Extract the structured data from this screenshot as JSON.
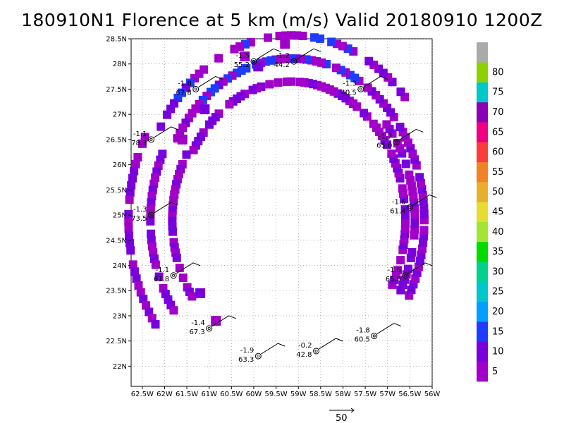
{
  "chart_data": {
    "type": "heatmap",
    "title": "180910N1 Florence at 5 km (m/s) Valid 20180910 1200Z",
    "x_ticks": [
      "62.5W",
      "62W",
      "61.5W",
      "61W",
      "60.5W",
      "60W",
      "59.5W",
      "59W",
      "58.5W",
      "58W",
      "57.5W",
      "57W",
      "56.5W",
      "56W"
    ],
    "y_ticks": [
      "28.5N",
      "28N",
      "27.5N",
      "27N",
      "26.5N",
      "26N",
      "25.5N",
      "25N",
      "24.5N",
      "24N",
      "23.5N",
      "23N",
      "22.5N",
      "22N"
    ],
    "xlim": [
      -62.75,
      -56.0
    ],
    "ylim": [
      21.6,
      28.5
    ],
    "grid": true,
    "colorbar": {
      "labels": [
        "5",
        "10",
        "15",
        "20",
        "25",
        "30",
        "35",
        "40",
        "45",
        "50",
        "55",
        "60",
        "65",
        "70",
        "75",
        "80"
      ],
      "colors": [
        "#a000c8",
        "#7800dc",
        "#1e3cff",
        "#00a0ff",
        "#00c8c8",
        "#00d28c",
        "#00dc00",
        "#a0e632",
        "#e6dc32",
        "#e6af2d",
        "#f08228",
        "#fa3c3c",
        "#f00082",
        "#8c00b4",
        "#00c8c8",
        "#8cd200",
        "#aaaaaa"
      ]
    },
    "arrow_scale_label": "50",
    "stations": [
      {
        "lon": -60.0,
        "lat": 28.05,
        "top": "-1.5",
        "bottom": "55.2"
      },
      {
        "lon": -59.1,
        "lat": 28.05,
        "top": "-1.2",
        "bottom": "44.2"
      },
      {
        "lon": -61.3,
        "lat": 27.5,
        "top": "-1.8",
        "bottom": "67.8"
      },
      {
        "lon": -57.6,
        "lat": 27.5,
        "top": "-1.3",
        "bottom": "40.5"
      },
      {
        "lon": -62.3,
        "lat": 26.5,
        "top": "-1.1",
        "bottom": "78.3"
      },
      {
        "lon": -56.8,
        "lat": 26.45,
        "top": "-1.7",
        "bottom": "65.0"
      },
      {
        "lon": -62.3,
        "lat": 25.0,
        "top": "-1.3",
        "bottom": "73.5"
      },
      {
        "lon": -56.5,
        "lat": 25.15,
        "top": "-1.6",
        "bottom": "61.4"
      },
      {
        "lon": -61.8,
        "lat": 23.8,
        "top": "-1.1",
        "bottom": "61.8"
      },
      {
        "lon": -56.6,
        "lat": 23.8,
        "top": "-1.6",
        "bottom": "65.0"
      },
      {
        "lon": -61.0,
        "lat": 22.75,
        "top": "-1.4",
        "bottom": "67.3"
      },
      {
        "lon": -57.3,
        "lat": 22.6,
        "top": "-1.8",
        "bottom": "60.5"
      },
      {
        "lon": -59.9,
        "lat": 22.2,
        "top": "-1.9",
        "bottom": "63.3"
      },
      {
        "lon": -58.6,
        "lat": 22.3,
        "top": "-0.2",
        "bottom": "42.8"
      }
    ]
  }
}
